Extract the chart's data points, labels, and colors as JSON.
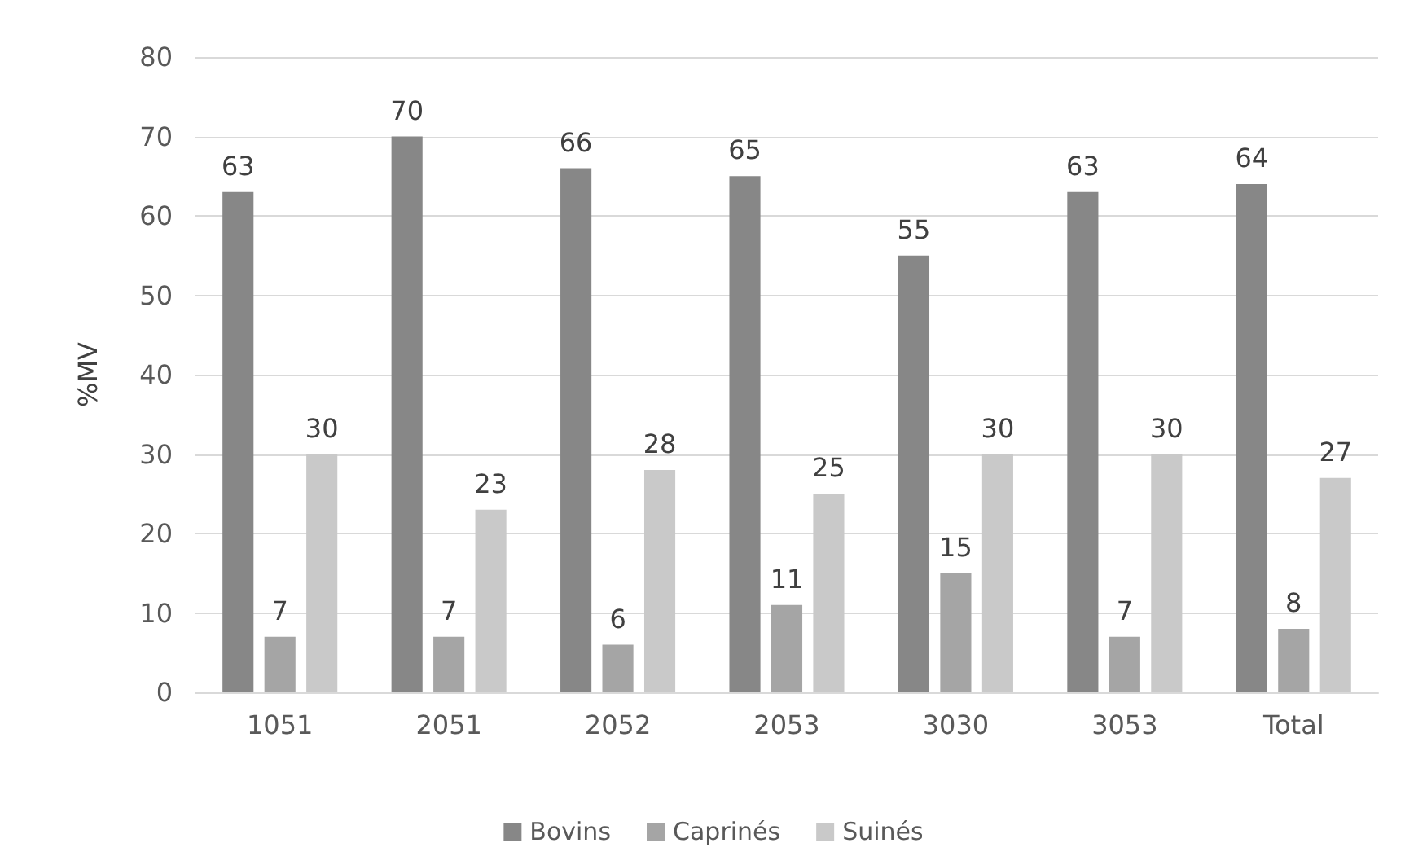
{
  "chart_data": {
    "type": "bar",
    "ylabel": "%MV",
    "categories": [
      "1051",
      "2051",
      "2052",
      "2053",
      "3030",
      "3053",
      "Total"
    ],
    "series": [
      {
        "name": "Bovins",
        "color": "#878787",
        "values": [
          63,
          70,
          66,
          65,
          55,
          63,
          64
        ]
      },
      {
        "name": "Caprinés",
        "color": "#a5a5a5",
        "values": [
          7,
          7,
          6,
          11,
          15,
          7,
          8
        ]
      },
      {
        "name": "Suinés",
        "color": "#c9c9c9",
        "values": [
          30,
          23,
          28,
          25,
          30,
          30,
          27
        ]
      }
    ],
    "ylim": [
      0,
      80
    ],
    "yticks": [
      0,
      10,
      20,
      30,
      40,
      50,
      60,
      70,
      80
    ],
    "grid": "y",
    "legend": "bottom",
    "data_labels": true
  }
}
